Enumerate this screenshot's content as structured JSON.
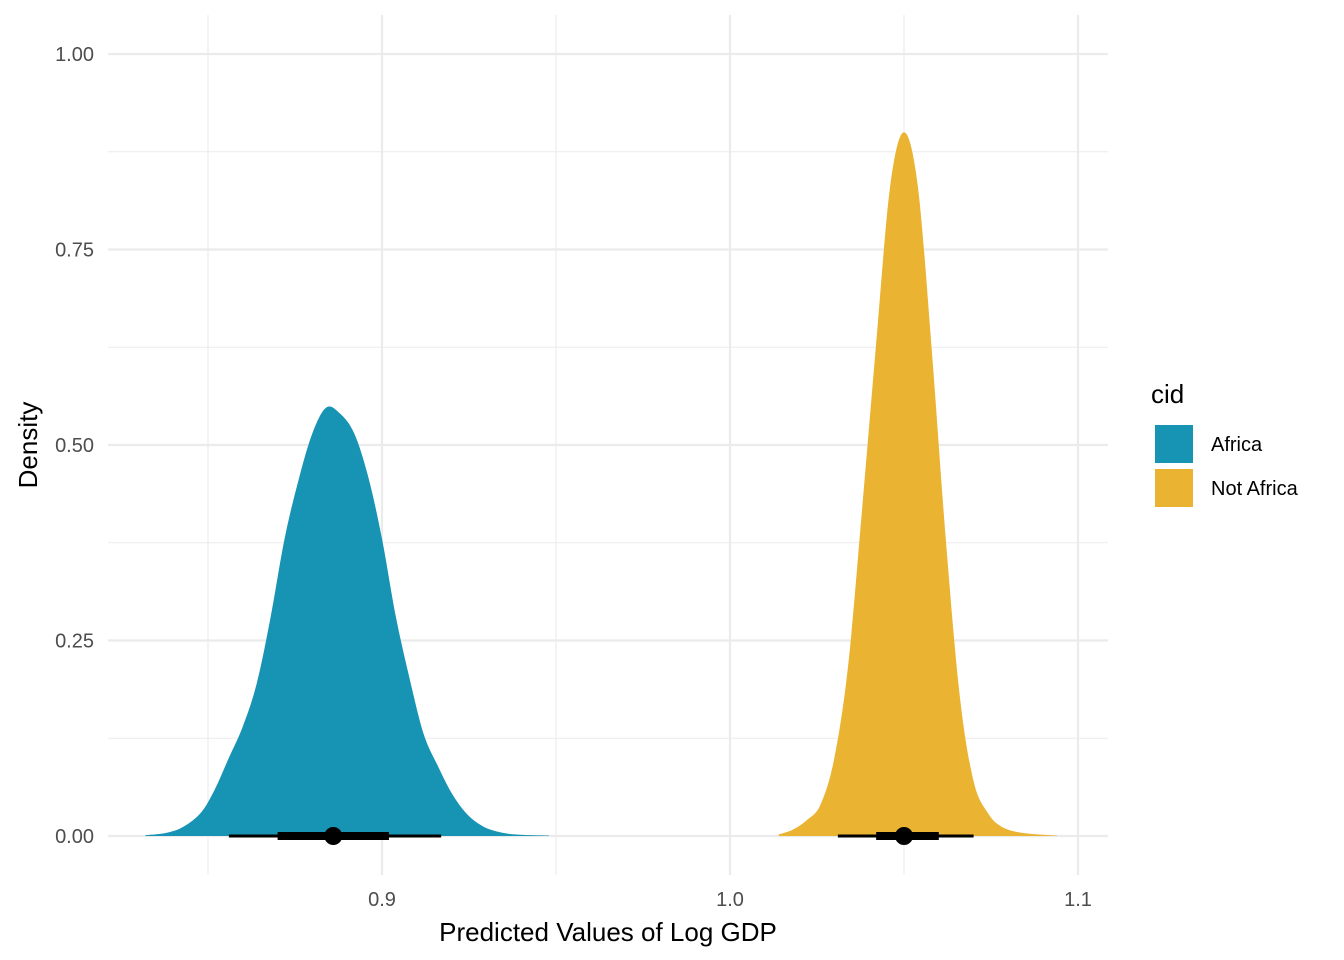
{
  "chart_data": {
    "type": "area",
    "title": "",
    "xlabel": "Predicted Values of Log GDP",
    "ylabel": "Density",
    "xlim": [
      0.825,
      1.1
    ],
    "ylim": [
      -0.05,
      1.05
    ],
    "x_ticks": [
      0.9,
      1.0,
      1.1
    ],
    "x_tick_labels": [
      "0.9",
      "1.0",
      "1.1"
    ],
    "x_minor_ticks": [
      0.85,
      0.95,
      1.05
    ],
    "y_ticks": [
      0,
      0.25,
      0.5,
      0.75,
      1.0
    ],
    "y_tick_labels": [
      "0.00",
      "0.25",
      "0.50",
      "0.75",
      "1.00"
    ],
    "y_minor_ticks": [
      0.125,
      0.375,
      0.625,
      0.875
    ],
    "grid": true,
    "legend": {
      "title": "cid",
      "position": "right"
    },
    "series": [
      {
        "name": "Africa",
        "color": "#1793b3",
        "points": [
          [
            0.832,
            0.001
          ],
          [
            0.838,
            0.004
          ],
          [
            0.843,
            0.012
          ],
          [
            0.848,
            0.03
          ],
          [
            0.852,
            0.06
          ],
          [
            0.856,
            0.1
          ],
          [
            0.86,
            0.14
          ],
          [
            0.864,
            0.195
          ],
          [
            0.868,
            0.28
          ],
          [
            0.872,
            0.38
          ],
          [
            0.876,
            0.455
          ],
          [
            0.88,
            0.515
          ],
          [
            0.884,
            0.548
          ],
          [
            0.888,
            0.54
          ],
          [
            0.892,
            0.515
          ],
          [
            0.896,
            0.46
          ],
          [
            0.9,
            0.38
          ],
          [
            0.904,
            0.28
          ],
          [
            0.908,
            0.2
          ],
          [
            0.912,
            0.13
          ],
          [
            0.916,
            0.09
          ],
          [
            0.92,
            0.055
          ],
          [
            0.924,
            0.03
          ],
          [
            0.928,
            0.015
          ],
          [
            0.932,
            0.007
          ],
          [
            0.938,
            0.002
          ],
          [
            0.948,
            0.0005
          ]
        ],
        "point_interval": {
          "median": 0.886,
          "inner": [
            0.87,
            0.902
          ],
          "outer": [
            0.856,
            0.917
          ]
        }
      },
      {
        "name": "Not Africa",
        "color": "#eab331",
        "points": [
          [
            1.014,
            0.002
          ],
          [
            1.018,
            0.008
          ],
          [
            1.022,
            0.02
          ],
          [
            1.026,
            0.04
          ],
          [
            1.03,
            0.1
          ],
          [
            1.034,
            0.22
          ],
          [
            1.038,
            0.42
          ],
          [
            1.042,
            0.63
          ],
          [
            1.046,
            0.83
          ],
          [
            1.05,
            0.9
          ],
          [
            1.054,
            0.83
          ],
          [
            1.058,
            0.62
          ],
          [
            1.062,
            0.38
          ],
          [
            1.066,
            0.18
          ],
          [
            1.07,
            0.07
          ],
          [
            1.074,
            0.03
          ],
          [
            1.078,
            0.012
          ],
          [
            1.084,
            0.004
          ],
          [
            1.094,
            0.0005
          ]
        ],
        "point_interval": {
          "median": 1.05,
          "inner": [
            1.042,
            1.06
          ],
          "outer": [
            1.031,
            1.07
          ]
        }
      }
    ]
  }
}
